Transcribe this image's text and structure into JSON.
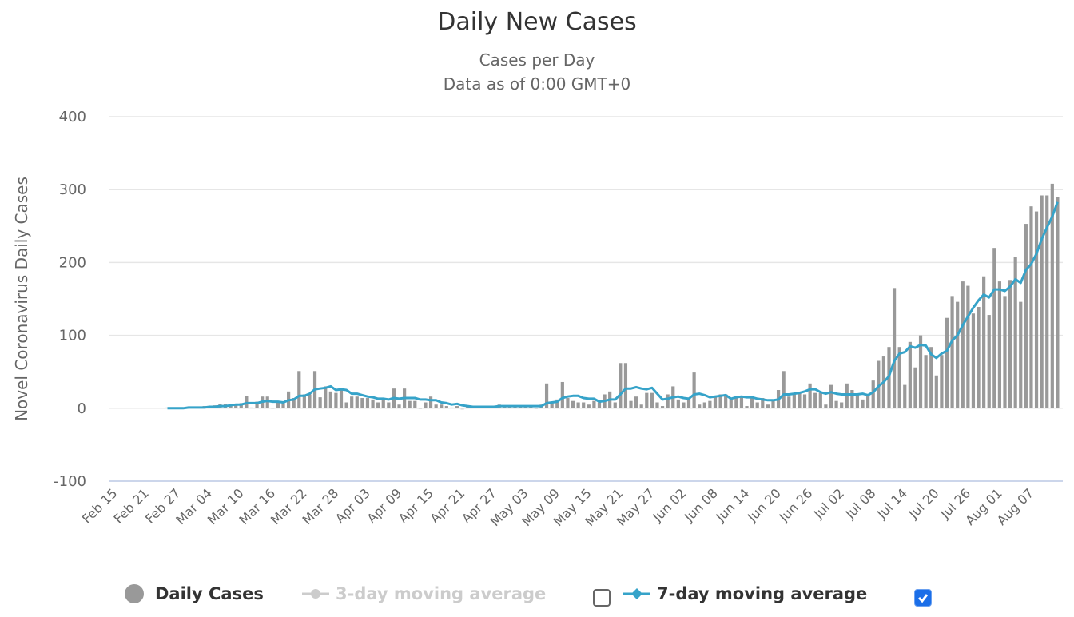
{
  "title": "Daily New Cases",
  "subtitle_line1": "Cases per Day",
  "subtitle_line2": "Data as of 0:00 GMT+0",
  "colors": {
    "bars": "#999999",
    "bars_negative": "#dddddd",
    "line_7day": "#36a3c9",
    "legend_disabled": "#cccccc",
    "checkbox_checked": "#1a6ee8",
    "grid": "#e6e6e6",
    "axis": "#ccd6eb"
  },
  "legend": {
    "daily_cases": "Daily Cases",
    "three_day": "3-day moving average",
    "seven_day": "7-day moving average",
    "three_day_checked": false,
    "seven_day_checked": true
  },
  "chart_data": {
    "type": "bar",
    "ylabel": "Novel Coronavirus Daily Cases",
    "ylim": [
      -100,
      400
    ],
    "yticks": [
      400,
      300,
      200,
      100,
      0,
      -100
    ],
    "xlim": [
      "Feb 14",
      "Aug 13"
    ],
    "xticks": [
      "Feb 15",
      "Feb 21",
      "Feb 27",
      "Mar 04",
      "Mar 10",
      "Mar 16",
      "Mar 22",
      "Mar 28",
      "Apr 03",
      "Apr 09",
      "Apr 15",
      "Apr 21",
      "Apr 27",
      "May 03",
      "May 09",
      "May 15",
      "May 21",
      "May 27",
      "Jun 02",
      "Jun 08",
      "Jun 14",
      "Jun 20",
      "Jun 26",
      "Jul 02",
      "Jul 08",
      "Jul 14",
      "Jul 20",
      "Jul 26",
      "Aug 01",
      "Aug 07"
    ],
    "grid": true,
    "legend_position": "bottom",
    "x": [
      "Feb 25",
      "Feb 26",
      "Feb 27",
      "Feb 28",
      "Feb 29",
      "Mar 01",
      "Mar 02",
      "Mar 03",
      "Mar 04",
      "Mar 05",
      "Mar 06",
      "Mar 07",
      "Mar 08",
      "Mar 09",
      "Mar 10",
      "Mar 11",
      "Mar 12",
      "Mar 13",
      "Mar 14",
      "Mar 15",
      "Mar 16",
      "Mar 17",
      "Mar 18",
      "Mar 19",
      "Mar 20",
      "Mar 21",
      "Mar 22",
      "Mar 23",
      "Mar 24",
      "Mar 25",
      "Mar 26",
      "Mar 27",
      "Mar 28",
      "Mar 29",
      "Mar 30",
      "Mar 31",
      "Apr 01",
      "Apr 02",
      "Apr 03",
      "Apr 04",
      "Apr 05",
      "Apr 06",
      "Apr 07",
      "Apr 08",
      "Apr 09",
      "Apr 10",
      "Apr 11",
      "Apr 12",
      "Apr 13",
      "Apr 14",
      "Apr 15",
      "Apr 16",
      "Apr 17",
      "Apr 18",
      "Apr 19",
      "Apr 20",
      "Apr 21",
      "Apr 22",
      "Apr 23",
      "Apr 24",
      "Apr 25",
      "Apr 26",
      "Apr 27",
      "Apr 28",
      "Apr 29",
      "Apr 30",
      "May 01",
      "May 02",
      "May 03",
      "May 04",
      "May 05",
      "May 06",
      "May 07",
      "May 08",
      "May 09",
      "May 10",
      "May 11",
      "May 12",
      "May 13",
      "May 14",
      "May 15",
      "May 16",
      "May 17",
      "May 18",
      "May 19",
      "May 20",
      "May 21",
      "May 22",
      "May 23",
      "May 24",
      "May 25",
      "May 26",
      "May 27",
      "May 28",
      "May 29",
      "May 30",
      "May 31",
      "Jun 01",
      "Jun 02",
      "Jun 03",
      "Jun 04",
      "Jun 05",
      "Jun 06",
      "Jun 07",
      "Jun 08",
      "Jun 09",
      "Jun 10",
      "Jun 11",
      "Jun 12",
      "Jun 13",
      "Jun 14",
      "Jun 15",
      "Jun 16",
      "Jun 17",
      "Jun 18",
      "Jun 19",
      "Jun 20",
      "Jun 21",
      "Jun 22",
      "Jun 23",
      "Jun 24",
      "Jun 25",
      "Jun 26",
      "Jun 27",
      "Jun 28",
      "Jun 29",
      "Jun 30",
      "Jul 01",
      "Jul 02",
      "Jul 03",
      "Jul 04",
      "Jul 05",
      "Jul 06",
      "Jul 07",
      "Jul 08",
      "Jul 09",
      "Jul 10",
      "Jul 11",
      "Jul 12",
      "Jul 13",
      "Jul 14",
      "Jul 15",
      "Jul 16",
      "Jul 17",
      "Jul 18",
      "Jul 19",
      "Jul 20",
      "Jul 21",
      "Jul 22",
      "Jul 23",
      "Jul 24",
      "Jul 25",
      "Jul 26",
      "Jul 27",
      "Jul 28",
      "Jul 29",
      "Jul 30",
      "Jul 31",
      "Aug 01",
      "Aug 02",
      "Aug 03",
      "Aug 04",
      "Aug 05",
      "Aug 06",
      "Aug 07",
      "Aug 08",
      "Aug 09",
      "Aug 10",
      "Aug 11",
      "Aug 12"
    ],
    "series": [
      {
        "name": "Daily Cases",
        "type": "bar",
        "values": [
          1,
          0,
          1,
          1,
          2,
          1,
          2,
          3,
          2,
          4,
          6,
          6,
          6,
          6,
          7,
          17,
          1,
          9,
          16,
          16,
          -1,
          8,
          7,
          23,
          14,
          51,
          19,
          19,
          51,
          15,
          30,
          23,
          21,
          25,
          8,
          16,
          16,
          14,
          14,
          12,
          8,
          14,
          8,
          27,
          5,
          27,
          10,
          10,
          0,
          8,
          16,
          5,
          5,
          3,
          1,
          3,
          -2,
          3,
          3,
          3,
          3,
          3,
          3,
          5,
          3,
          3,
          3,
          3,
          3,
          3,
          0,
          5,
          34,
          8,
          12,
          36,
          14,
          10,
          8,
          8,
          5,
          10,
          8,
          19,
          23,
          8,
          62,
          62,
          10,
          16,
          5,
          21,
          21,
          8,
          3,
          19,
          30,
          12,
          8,
          14,
          49,
          5,
          8,
          10,
          16,
          19,
          19,
          14,
          16,
          16,
          3,
          16,
          8,
          14,
          5,
          12,
          25,
          51,
          16,
          19,
          21,
          19,
          34,
          21,
          21,
          5,
          32,
          10,
          8,
          34,
          25,
          19,
          12,
          19,
          38,
          65,
          71,
          84,
          165,
          84,
          32,
          91,
          56,
          100,
          73,
          84,
          45,
          73,
          124,
          154,
          146,
          174,
          168,
          130,
          139,
          181,
          128,
          220,
          174,
          154,
          176,
          207,
          146,
          253,
          277,
          270,
          292,
          292,
          308,
          290
        ]
      },
      {
        "name": "7-day moving average",
        "type": "line",
        "values": [
          0,
          0,
          0,
          0,
          1,
          1,
          1,
          1,
          2,
          2,
          3,
          3,
          4,
          5,
          5,
          7,
          7,
          7,
          9,
          10,
          9,
          9,
          8,
          11,
          12,
          17,
          17,
          20,
          26,
          27,
          28,
          30,
          25,
          26,
          25,
          20,
          20,
          18,
          16,
          15,
          13,
          13,
          12,
          14,
          13,
          14,
          14,
          14,
          12,
          12,
          11,
          11,
          8,
          7,
          5,
          6,
          4,
          3,
          2,
          2,
          2,
          2,
          2,
          3,
          3,
          3,
          3,
          3,
          3,
          3,
          3,
          3,
          7,
          8,
          9,
          14,
          16,
          17,
          17,
          14,
          13,
          13,
          9,
          10,
          12,
          12,
          19,
          27,
          27,
          29,
          27,
          26,
          28,
          20,
          12,
          13,
          15,
          16,
          14,
          13,
          19,
          20,
          18,
          15,
          16,
          17,
          18,
          13,
          15,
          16,
          15,
          15,
          13,
          12,
          11,
          11,
          12,
          19,
          19,
          20,
          21,
          23,
          26,
          26,
          22,
          20,
          22,
          20,
          19,
          19,
          19,
          19,
          20,
          18,
          22,
          30,
          36,
          44,
          65,
          75,
          77,
          85,
          83,
          87,
          86,
          74,
          69,
          75,
          79,
          93,
          100,
          114,
          126,
          138,
          148,
          156,
          152,
          163,
          163,
          161,
          167,
          177,
          172,
          190,
          198,
          212,
          232,
          248,
          263,
          283
        ]
      }
    ]
  }
}
